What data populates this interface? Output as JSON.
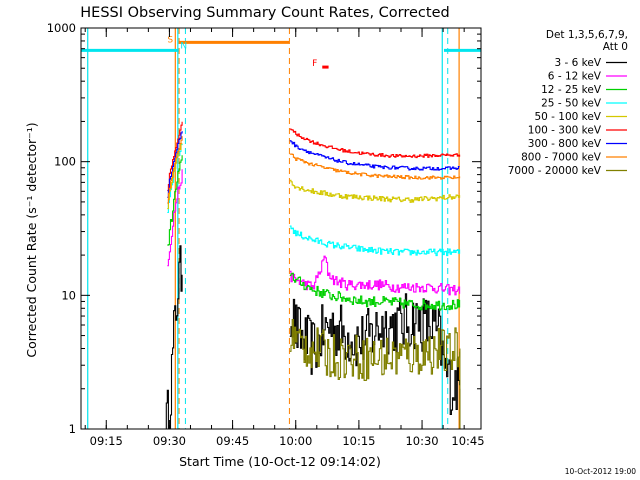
{
  "chart_data": {
    "type": "line",
    "title": "HESSI Observing Summary Count Rates, Corrected",
    "xlabel": "Start Time (10-Oct-12 09:14:02)",
    "ylabel": "Corrected Count Rate (s⁻¹ detector⁻¹)",
    "footer": "10-Oct-2012 19:00",
    "x_unit": "minutes after 09:00 UT",
    "xlim": [
      9,
      104
    ],
    "ylim": [
      1,
      1000
    ],
    "y_scale": "log",
    "x_ticks": [
      {
        "label": "09:15",
        "value": 15
      },
      {
        "label": "09:30",
        "value": 30
      },
      {
        "label": "09:45",
        "value": 45
      },
      {
        "label": "10:00",
        "value": 60
      },
      {
        "label": "10:15",
        "value": 75
      },
      {
        "label": "10:30",
        "value": 90
      },
      {
        "label": "10:45",
        "value": 105
      }
    ],
    "y_ticks": [
      {
        "label": "1",
        "value": 1
      },
      {
        "label": "10",
        "value": 10
      },
      {
        "label": "100",
        "value": 100
      },
      {
        "label": "1000",
        "value": 1000
      }
    ],
    "legend": {
      "header": [
        "Det 1,3,5,6,7,9,",
        "Att 0"
      ],
      "position": "right"
    },
    "annotations": [
      {
        "label": "S",
        "x": 30.2,
        "y": 780,
        "color": "#ff8000"
      },
      {
        "label": "N",
        "x": 33.4,
        "y": 700,
        "color": "#00e5ee"
      },
      {
        "label": "F",
        "x": 64.5,
        "y": 520,
        "color": "#ff0000"
      }
    ],
    "flag_bars": [
      {
        "name": "SAA",
        "color": "#00e5ee",
        "y": 680,
        "x": [
          [
            9,
            32.2
          ],
          [
            95.2,
            106.5
          ]
        ]
      },
      {
        "name": "Night",
        "color": "#ff8000",
        "y": 780,
        "x": [
          [
            32.2,
            58.5
          ]
        ]
      },
      {
        "name": "Flare",
        "color": "#ff0000",
        "y": 510,
        "x": [
          [
            66.3,
            67.8
          ]
        ]
      }
    ],
    "dashed_lines": [
      {
        "x": 32.3,
        "color": "#ff8000"
      },
      {
        "x": 33.8,
        "color": "#00e5ee"
      },
      {
        "x": 58.5,
        "color": "#ff8000"
      },
      {
        "x": 96.1,
        "color": "#00e5ee"
      },
      {
        "x": 104.4,
        "color": "#00e5ee"
      }
    ],
    "solid_lines": [
      {
        "x": 10.6,
        "color": "#00e5ee"
      },
      {
        "x": 32.0,
        "color": "#00e5ee"
      },
      {
        "x": 94.8,
        "color": "#00e5ee"
      },
      {
        "x": 104.5,
        "color": "#00e5ee"
      },
      {
        "x": 31.4,
        "color": "#ff8000"
      },
      {
        "x": 98.8,
        "color": "#ff8000"
      }
    ],
    "series": [
      {
        "name": "3 - 6 keV",
        "color": "#000000",
        "noise": 0.45,
        "rise_x": [
          29,
          30,
          31,
          32,
          33.2
        ],
        "rise_y": [
          1,
          1.5,
          5,
          12,
          18
        ],
        "x": [
          58.6,
          60,
          62,
          64,
          66,
          68,
          70,
          72,
          75,
          78,
          80,
          84,
          88,
          92,
          94,
          95,
          96,
          97,
          98,
          99
        ],
        "y": [
          8,
          5.5,
          4.5,
          4,
          5,
          6,
          5.5,
          5,
          4.5,
          5,
          6,
          6,
          6.5,
          6,
          5,
          3,
          2.5,
          2,
          2.2,
          2
        ]
      },
      {
        "name": "6 - 12 keV",
        "color": "#ff00ff",
        "noise": 0.08,
        "rise_x": [
          29.5,
          30,
          31,
          32,
          33.2
        ],
        "rise_y": [
          18,
          22,
          40,
          60,
          85
        ],
        "x": [
          58.6,
          60,
          64,
          66,
          66.8,
          67.5,
          69,
          72,
          76,
          80,
          84,
          88,
          92,
          96,
          99
        ],
        "y": [
          14,
          13,
          11.5,
          16,
          20,
          15,
          13,
          12,
          12,
          12,
          11.5,
          11.5,
          11.5,
          11,
          11
        ]
      },
      {
        "name": "12 - 25 keV",
        "color": "#00d000",
        "noise": 0.08,
        "rise_x": [
          29.5,
          30,
          31,
          32,
          33.2
        ],
        "rise_y": [
          22,
          30,
          50,
          80,
          110
        ],
        "x": [
          58.6,
          60,
          64,
          68,
          72,
          76,
          80,
          84,
          88,
          92,
          96,
          99
        ],
        "y": [
          15,
          13,
          11,
          10,
          9.5,
          9,
          9,
          8.8,
          8.5,
          8.5,
          8.5,
          8.5
        ]
      },
      {
        "name": "25 - 50 keV",
        "color": "#00ffff",
        "noise": 0.05,
        "rise_x": [
          29.5,
          30,
          31,
          32,
          33.2
        ],
        "rise_y": [
          40,
          55,
          80,
          110,
          140
        ],
        "x": [
          58.6,
          60,
          64,
          68,
          72,
          76,
          80,
          84,
          88,
          92,
          96,
          99
        ],
        "y": [
          33,
          29,
          26,
          24,
          23,
          22,
          21.5,
          21,
          21,
          21,
          21,
          21
        ]
      },
      {
        "name": "50 - 100 keV",
        "color": "#d4c800",
        "noise": 0.04,
        "rise_x": [
          29.5,
          30,
          31,
          32,
          33.2
        ],
        "rise_y": [
          45,
          60,
          85,
          115,
          145
        ],
        "x": [
          58.6,
          60,
          64,
          68,
          72,
          76,
          80,
          84,
          88,
          92,
          96,
          99
        ],
        "y": [
          72,
          65,
          60,
          57,
          55,
          54,
          53,
          52,
          52,
          53,
          54,
          55
        ]
      },
      {
        "name": "100 - 300 keV",
        "color": "#ff0000",
        "noise": 0.025,
        "rise_x": [
          29.5,
          30,
          31,
          32,
          33.2
        ],
        "rise_y": [
          60,
          80,
          110,
          150,
          205
        ],
        "x": [
          58.6,
          60,
          64,
          68,
          72,
          76,
          80,
          84,
          88,
          92,
          96,
          99
        ],
        "y": [
          180,
          160,
          140,
          128,
          120,
          115,
          112,
          110,
          110,
          111,
          112,
          112
        ]
      },
      {
        "name": "300 - 800 keV",
        "color": "#0000ff",
        "noise": 0.025,
        "rise_x": [
          29.5,
          30,
          31,
          32,
          33.2
        ],
        "rise_y": [
          55,
          72,
          100,
          135,
          180
        ],
        "x": [
          58.6,
          60,
          64,
          68,
          72,
          76,
          80,
          84,
          88,
          92,
          96,
          99
        ],
        "y": [
          145,
          130,
          115,
          105,
          98,
          94,
          91,
          90,
          89,
          89,
          89,
          90
        ]
      },
      {
        "name": "800 - 7000 keV",
        "color": "#ff8000",
        "noise": 0.025,
        "rise_x": [
          29.5,
          30,
          31,
          32,
          33.2
        ],
        "rise_y": [
          50,
          65,
          90,
          120,
          160
        ],
        "x": [
          58.6,
          60,
          64,
          68,
          72,
          76,
          80,
          84,
          88,
          92,
          96,
          99
        ],
        "y": [
          115,
          105,
          95,
          88,
          83,
          80,
          78,
          77,
          76,
          76,
          76,
          76
        ]
      },
      {
        "name": "7000 - 20000 keV",
        "color": "#808000",
        "noise": 0.35,
        "rise_x": [],
        "rise_y": [],
        "x": [
          58.6,
          60,
          64,
          68,
          72,
          76,
          80,
          84,
          88,
          92,
          94,
          96,
          98,
          99
        ],
        "y": [
          5.5,
          4.5,
          4,
          3.5,
          3.5,
          3.4,
          3.4,
          3.5,
          3.6,
          3.8,
          4,
          3.5,
          4,
          4
        ]
      }
    ]
  }
}
